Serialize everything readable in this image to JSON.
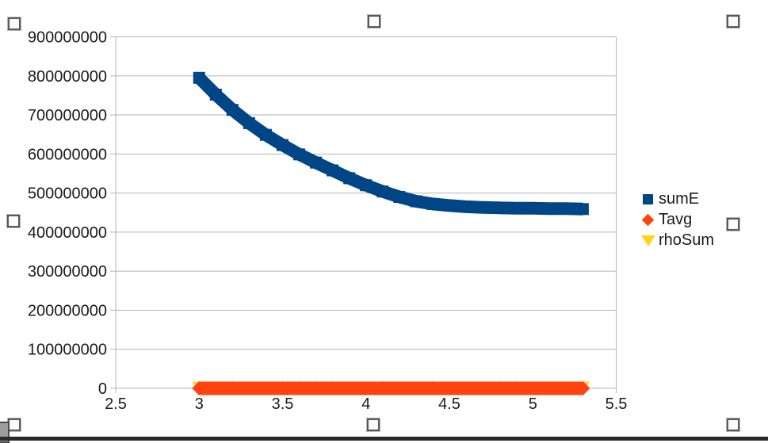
{
  "chart_data": {
    "type": "scatter",
    "title": "",
    "xlabel": "",
    "ylabel": "",
    "xlim": [
      2.5,
      5.5
    ],
    "ylim": [
      0,
      900000000
    ],
    "x_ticks": [
      2.5,
      3,
      3.5,
      4,
      4.5,
      5,
      5.5
    ],
    "y_ticks": [
      0,
      100000000,
      200000000,
      300000000,
      400000000,
      500000000,
      600000000,
      700000000,
      800000000,
      900000000
    ],
    "grid": "horizontal",
    "grid_color": "#b3b3b3",
    "axis_color": "#b3b3b3",
    "label_color": "#1a1a1a",
    "legend_position": "right",
    "x": [
      3.0,
      3.1,
      3.2,
      3.3,
      3.4,
      3.5,
      3.6,
      3.7,
      3.8,
      3.9,
      4.0,
      4.1,
      4.2,
      4.3,
      4.4,
      4.5,
      4.6,
      4.7,
      4.8,
      4.9,
      5.0,
      5.1,
      5.2,
      5.3
    ],
    "series": [
      {
        "name": "sumE",
        "color": "#004586",
        "marker": "square",
        "values": [
          795000000,
          752000000,
          713000000,
          679000000,
          649000000,
          623000000,
          599000000,
          578000000,
          558000000,
          538000000,
          520000000,
          504000000,
          490000000,
          479000000,
          472000000,
          468000000,
          465000000,
          463000000,
          462000000,
          461000000,
          461000000,
          460000000,
          460000000,
          459000000
        ]
      },
      {
        "name": "Tavg",
        "color": "#ff420e",
        "marker": "diamond",
        "values": [
          0,
          0,
          0,
          0,
          0,
          0,
          0,
          0,
          0,
          0,
          0,
          0,
          0,
          0,
          0,
          0,
          0,
          0,
          0,
          0,
          0,
          0,
          0,
          0
        ]
      },
      {
        "name": "rhoSum",
        "color": "#ffd320",
        "marker": "triangle-down",
        "values": [
          0,
          0,
          0,
          0,
          0,
          0,
          0,
          0,
          0,
          0,
          0,
          0,
          0,
          0,
          0,
          0,
          0,
          0,
          0,
          0,
          0,
          0,
          0,
          0
        ]
      }
    ]
  }
}
